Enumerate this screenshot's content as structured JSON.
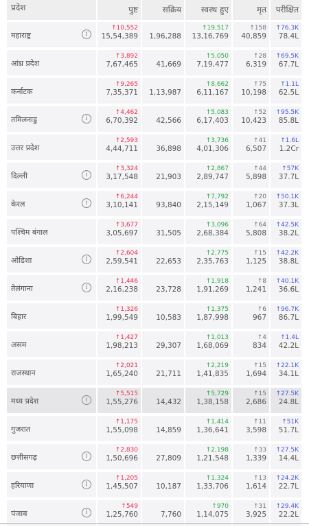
{
  "headers": {
    "state": "प्रदेश",
    "confirmed": "पुष्ट",
    "active": "सक्रिय",
    "recovered": "स्वस्थ हुए",
    "deceased": "मृत",
    "tested": "परीक्षित"
  },
  "arrow_glyph": "↑",
  "info_glyph": "i",
  "colors": {
    "confirmed": "#e8304a",
    "recovered": "#28a745",
    "deceased": "#6c757d",
    "tested": "#4b5bd6"
  },
  "rows": [
    {
      "state": "महाराष्ट्र",
      "info": true,
      "conf_delta": "10,552",
      "conf": "15,54,389",
      "active": "1,96,288",
      "rec_delta": "19,517",
      "rec": "13,16,769",
      "dec_delta": "158",
      "dec": "40,859",
      "test_delta": "76.3K",
      "test": "78.4L"
    },
    {
      "state": "आंध्र प्रदेश",
      "info": false,
      "conf_delta": "3,892",
      "conf": "7,67,465",
      "active": "41,669",
      "rec_delta": "5,050",
      "rec": "7,19,477",
      "dec_delta": "28",
      "dec": "6,319",
      "test_delta": "69.5K",
      "test": "67.7L"
    },
    {
      "state": "कर्नाटक",
      "info": false,
      "conf_delta": "9,265",
      "conf": "7,35,371",
      "active": "1,13,987",
      "rec_delta": "8,662",
      "rec": "6,11,167",
      "dec_delta": "75",
      "dec": "10,198",
      "test_delta": "1.1L",
      "test": "62.5L"
    },
    {
      "state": "तमिलनाडु",
      "info": true,
      "conf_delta": "4,462",
      "conf": "6,70,392",
      "active": "42,566",
      "rec_delta": "5,083",
      "rec": "6,17,403",
      "dec_delta": "52",
      "dec": "10,423",
      "test_delta": "95.5K",
      "test": "85.8L"
    },
    {
      "state": "उत्तर प्रदेश",
      "info": false,
      "conf_delta": "2,593",
      "conf": "4,44,711",
      "active": "36,898",
      "rec_delta": "3,736",
      "rec": "4,01,306",
      "dec_delta": "41",
      "dec": "6,507",
      "test_delta": "1.6L",
      "test": "1.2Cr"
    },
    {
      "state": "दिल्ली",
      "info": true,
      "conf_delta": "3,324",
      "conf": "3,17,548",
      "active": "21,903",
      "rec_delta": "2,867",
      "rec": "2,89,747",
      "dec_delta": "44",
      "dec": "5,898",
      "test_delta": "57K",
      "test": "37.7L"
    },
    {
      "state": "केरल",
      "info": true,
      "conf_delta": "6,244",
      "conf": "3,10,141",
      "active": "93,840",
      "rec_delta": "7,792",
      "rec": "2,15,149",
      "dec_delta": "20",
      "dec": "1,067",
      "test_delta": "50.1K",
      "test": "37.3L"
    },
    {
      "state": "पश्चिम बंगाल",
      "info": false,
      "conf_delta": "3,677",
      "conf": "3,05,697",
      "active": "31,505",
      "rec_delta": "3,096",
      "rec": "2,68,384",
      "dec_delta": "64",
      "dec": "5,808",
      "test_delta": "42.5K",
      "test": "38.2L"
    },
    {
      "state": "ओडिशा",
      "info": true,
      "conf_delta": "2,604",
      "conf": "2,59,541",
      "active": "22,653",
      "rec_delta": "2,775",
      "rec": "2,35,763",
      "dec_delta": "15",
      "dec": "1,125",
      "test_delta": "42.2K",
      "test": "38.8L"
    },
    {
      "state": "तेलंगाना",
      "info": true,
      "conf_delta": "1,446",
      "conf": "2,16,238",
      "active": "23,728",
      "rec_delta": "1,918",
      "rec": "1,91,269",
      "dec_delta": "8",
      "dec": "1,241",
      "test_delta": "40.1K",
      "test": "36.6L"
    },
    {
      "state": "बिहार",
      "info": false,
      "conf_delta": "1,326",
      "conf": "1,99,549",
      "active": "10,583",
      "rec_delta": "1,375",
      "rec": "1,87,998",
      "dec_delta": "6",
      "dec": "967",
      "test_delta": "96.7K",
      "test": "86.7L"
    },
    {
      "state": "असम",
      "info": false,
      "conf_delta": "1,427",
      "conf": "1,98,213",
      "active": "29,307",
      "rec_delta": "1,013",
      "rec": "1,68,069",
      "dec_delta": "4",
      "dec": "834",
      "test_delta": "1.4L",
      "test": "42.2L"
    },
    {
      "state": "राजस्थान",
      "info": false,
      "conf_delta": "2,021",
      "conf": "1,65,240",
      "active": "21,711",
      "rec_delta": "2,219",
      "rec": "1,41,835",
      "dec_delta": "15",
      "dec": "1,694",
      "test_delta": "22.1K",
      "test": "34.1L"
    },
    {
      "state": "मध्य प्रदेश",
      "info": true,
      "conf_delta": "5,515",
      "conf": "1,55,276",
      "active": "14,432",
      "rec_delta": "5,729",
      "rec": "1,38,158",
      "dec_delta": "15",
      "dec": "2,686",
      "test_delta": "27.5K",
      "test": "24.8L"
    },
    {
      "state": "गुजरात",
      "info": false,
      "conf_delta": "1,175",
      "conf": "1,55,098",
      "active": "14,859",
      "rec_delta": "1,414",
      "rec": "1,36,641",
      "dec_delta": "11",
      "dec": "3,598",
      "test_delta": "51K",
      "test": "51.7L"
    },
    {
      "state": "छत्तीसगढ़",
      "info": true,
      "conf_delta": "2,830",
      "conf": "1,50,696",
      "active": "27,809",
      "rec_delta": "2,198",
      "rec": "1,21,548",
      "dec_delta": "33",
      "dec": "1,339",
      "test_delta": "27.5K",
      "test": "14.4L"
    },
    {
      "state": "हरियाणा",
      "info": true,
      "conf_delta": "1,205",
      "conf": "1,45,507",
      "active": "10,187",
      "rec_delta": "1,324",
      "rec": "1,33,706",
      "dec_delta": "13",
      "dec": "1,614",
      "test_delta": "24.2K",
      "test": "22.7L"
    },
    {
      "state": "पंजाब",
      "info": true,
      "conf_delta": "549",
      "conf": "1,25,760",
      "active": "7,760",
      "rec_delta": "970",
      "rec": "1,14,075",
      "dec_delta": "31",
      "dec": "3,925",
      "test_delta": "29.4K",
      "test": "22.2L"
    }
  ],
  "highlighted_row": "मध्य प्रदेश"
}
